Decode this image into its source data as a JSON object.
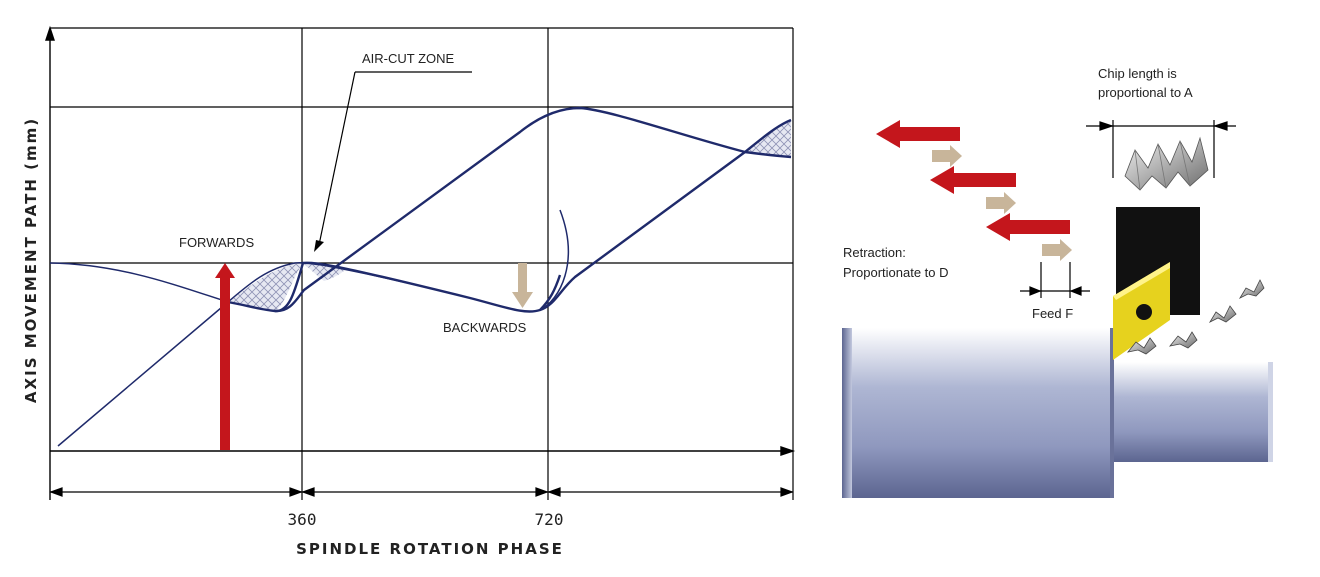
{
  "graph": {
    "y_axis_title": "AXIS MOVEMENT PATH (mm)",
    "x_axis_title": "SPINDLE ROTATION PHASE",
    "tick_labels": [
      "360",
      "720"
    ],
    "forwards_label": "FORWARDS",
    "backwards_label": "BACKWARDS",
    "air_cut_label": "AIR-CUT ZONE",
    "colors": {
      "path": "#1f2a6b",
      "forward_arrow": "#c4161c",
      "backward_arrow": "#c8b59a",
      "grid": "#000000"
    }
  },
  "illustration": {
    "chip_label_line1": "Chip length is",
    "chip_label_line2": "proportional to A",
    "retraction_line1": "Retraction:",
    "retraction_line2": "Proportionate to D",
    "feed_label": "Feed F",
    "colors": {
      "arrow_red": "#c4161c",
      "arrow_tan": "#c8b59a",
      "insert_yellow": "#e6d21e",
      "holder_black": "#111111",
      "workpiece": "#9fa8c8"
    }
  }
}
